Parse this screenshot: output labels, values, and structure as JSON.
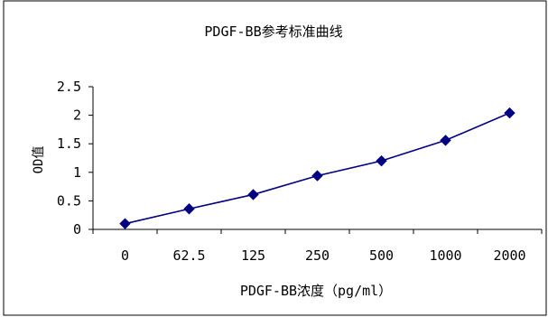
{
  "chart_data": {
    "type": "line",
    "title": "PDGF-BB参考标准曲线",
    "xlabel": "PDGF-BB浓度（pg/ml）",
    "ylabel": "OD值",
    "categories": [
      "0",
      "62.5",
      "125",
      "250",
      "500",
      "1000",
      "2000"
    ],
    "series": [
      {
        "values": [
          0.1,
          0.36,
          0.61,
          0.94,
          1.2,
          1.56,
          2.04
        ]
      }
    ],
    "ylim": [
      0,
      2.5
    ],
    "yticks": [
      "0",
      "0.5",
      "1",
      "1.5",
      "2",
      "2.5"
    ],
    "grid": false,
    "legend": "none",
    "colors": {
      "series": "#000080",
      "axis": "#000000",
      "border": "#000000"
    }
  }
}
